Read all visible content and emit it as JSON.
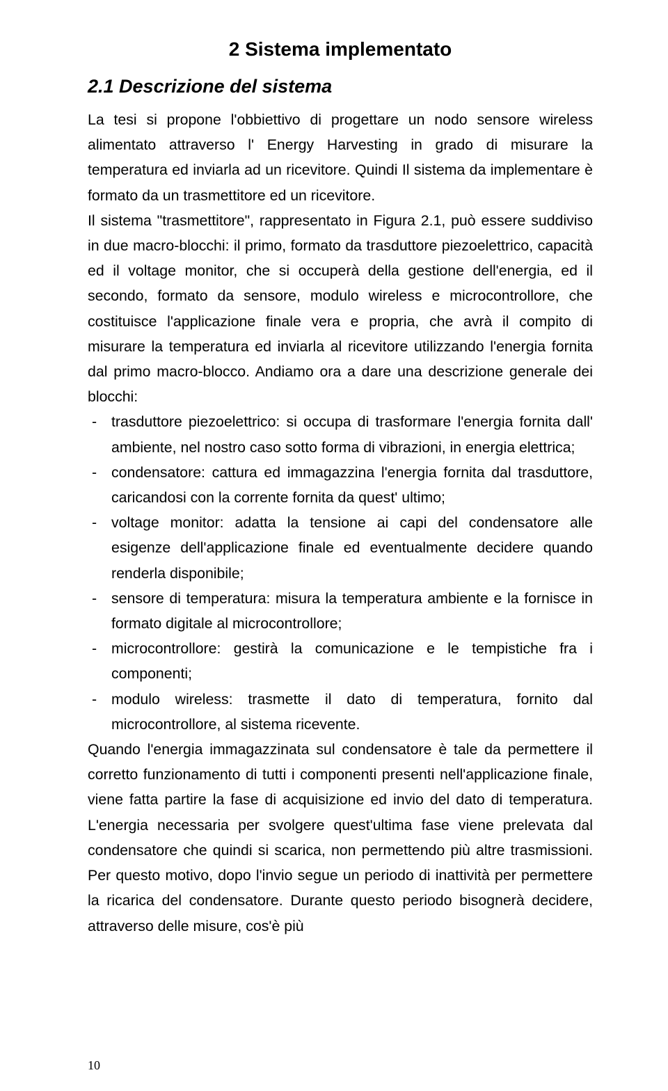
{
  "chapter_title": "2 Sistema implementato",
  "section_title": "2.1 Descrizione del sistema",
  "para1": "La tesi si propone l'obbiettivo di progettare un nodo sensore wireless alimentato attraverso l' Energy Harvesting in grado di misurare la temperatura ed inviarla ad un ricevitore. Quindi Il sistema da implementare è formato da un trasmettitore ed un ricevitore.",
  "para2": "Il sistema \"trasmettitore\", rappresentato in Figura 2.1, può essere suddiviso in due macro-blocchi: il primo, formato da trasduttore piezoelettrico, capacità ed il voltage monitor, che si occuperà della gestione dell'energia, ed il secondo, formato da sensore, modulo wireless e microcontrollore, che costituisce l'applicazione finale vera e propria, che avrà il compito di misurare la temperatura ed inviarla al ricevitore utilizzando l'energia fornita dal primo macro-blocco. Andiamo ora a dare una descrizione generale dei blocchi:",
  "bullets": [
    "trasduttore piezoelettrico: si occupa di trasformare l'energia fornita dall' ambiente, nel nostro caso sotto forma di vibrazioni, in energia elettrica;",
    "condensatore: cattura ed immagazzina l'energia fornita dal trasduttore, caricandosi con la corrente fornita da quest' ultimo;",
    "voltage monitor: adatta la tensione ai capi del condensatore alle esigenze dell'applicazione finale ed eventualmente decidere quando renderla disponibile;",
    "sensore di temperatura: misura la temperatura ambiente e la fornisce in formato digitale al microcontrollore;",
    "microcontrollore: gestirà la comunicazione e le tempistiche fra i componenti;",
    "modulo wireless: trasmette il dato di temperatura, fornito dal microcontrollore, al sistema ricevente."
  ],
  "para3": "Quando l'energia immagazzinata sul condensatore è tale da permettere il corretto funzionamento di tutti i componenti presenti nell'applicazione finale, viene fatta partire la fase di acquisizione ed invio del dato di temperatura. L'energia necessaria per svolgere quest'ultima fase viene prelevata dal condensatore che quindi si scarica, non permettendo più altre trasmissioni. Per questo motivo, dopo l'invio segue un periodo di inattività per permettere la ricarica del condensatore. Durante questo periodo bisognerà decidere, attraverso delle misure, cos'è più",
  "page_number": "10"
}
